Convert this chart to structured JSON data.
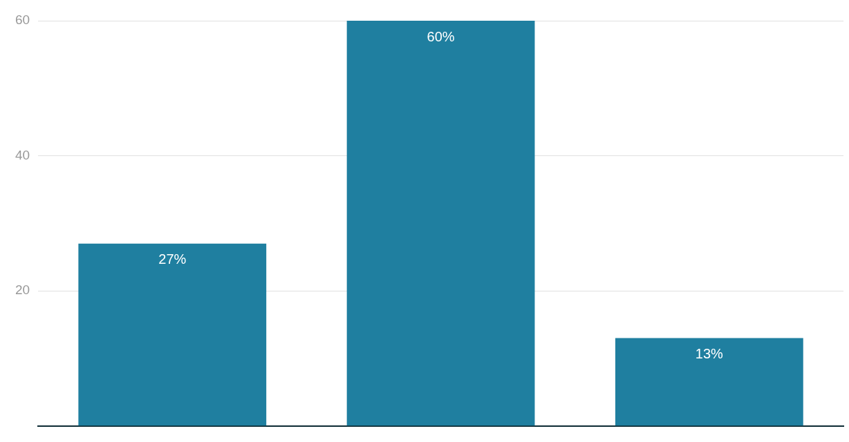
{
  "chart_data": {
    "type": "bar",
    "categories": [
      null,
      null,
      null
    ],
    "values": [
      27,
      60,
      13
    ],
    "value_labels": [
      "27%",
      "60%",
      "13%"
    ],
    "color": "#1f7fa0",
    "ylim": [
      0,
      60
    ],
    "yticks": [
      20,
      40,
      60
    ],
    "grid": "y",
    "legend": false
  }
}
